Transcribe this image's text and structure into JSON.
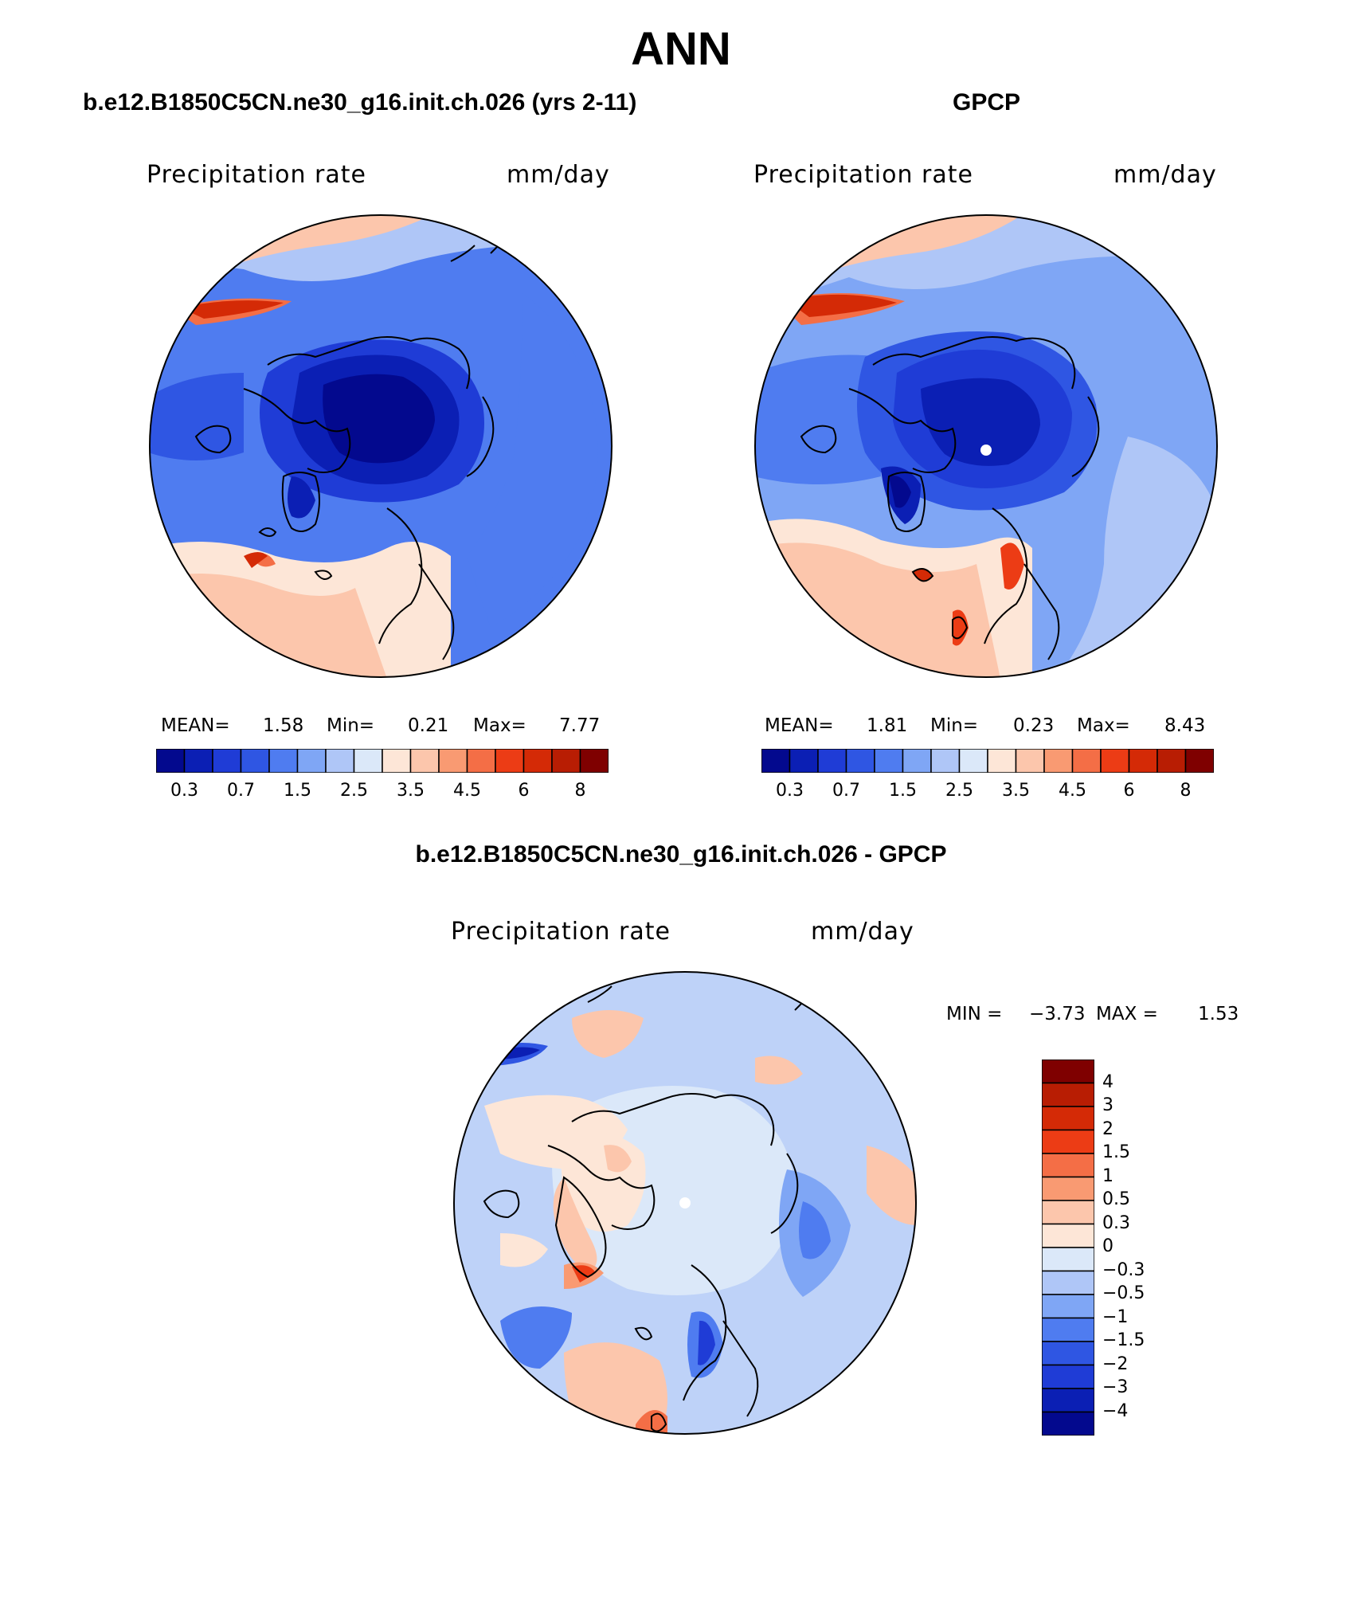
{
  "page_title": "ANN",
  "panels": [
    {
      "title": "b.e12.B1850C5CN.ne30_g16.init.ch.026 (yrs 2-11)",
      "label_left": "Precipitation rate",
      "label_right": "mm/day",
      "stats": {
        "mean_label": "MEAN=",
        "mean": "1.58",
        "min_label": "Min=",
        "min": "0.21",
        "max_label": "Max=",
        "max": "7.77"
      }
    },
    {
      "title": "GPCP",
      "label_left": "Precipitation rate",
      "label_right": "mm/day",
      "stats": {
        "mean_label": "MEAN=",
        "mean": "1.81",
        "min_label": "Min=",
        "min": "0.23",
        "max_label": "Max=",
        "max": "8.43"
      }
    },
    {
      "title": "b.e12.B1850C5CN.ne30_g16.init.ch.026 - GPCP",
      "label_left": "Precipitation rate",
      "label_right": "mm/day",
      "stats": {
        "min_label": "MIN =",
        "min": "−3.73",
        "max_label": "MAX =",
        "max": "1.53"
      }
    }
  ],
  "colorbar_abs": {
    "ticks": [
      "0.3",
      "0.7",
      "1.5",
      "2.5",
      "3.5",
      "4.5",
      "6",
      "8"
    ],
    "colors": [
      "#03098e",
      "#0b1fb4",
      "#1f3cd6",
      "#2f56e3",
      "#4f7cf0",
      "#7fa6f5",
      "#afc6f7",
      "#dbe8f9",
      "#fde6d7",
      "#fcc6ac",
      "#f99a72",
      "#f46e46",
      "#ec3c15",
      "#d42a06",
      "#b81d03",
      "#7f0000"
    ]
  },
  "colorbar_diff": {
    "ticks": [
      "4",
      "3",
      "2",
      "1.5",
      "1",
      "0.5",
      "0.3",
      "0",
      "−0.3",
      "−0.5",
      "−1",
      "−1.5",
      "−2",
      "−3",
      "−4"
    ],
    "colors": [
      "#7f0000",
      "#b81d03",
      "#d42a06",
      "#ec3c15",
      "#f46e46",
      "#f99a72",
      "#fcc6ac",
      "#fde6d7",
      "#dbe8f9",
      "#afc6f7",
      "#7fa6f5",
      "#4f7cf0",
      "#2f56e3",
      "#1f3cd6",
      "#0b1fb4",
      "#03098e"
    ]
  }
}
